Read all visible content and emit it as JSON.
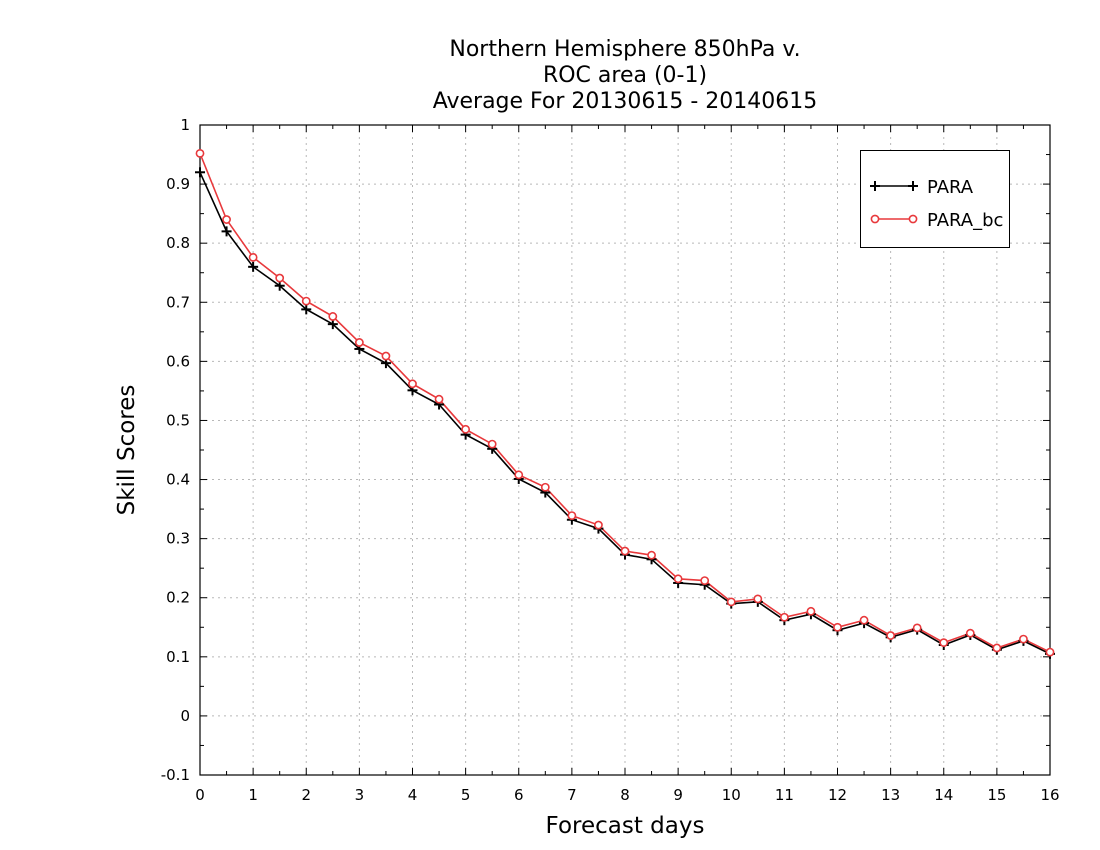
{
  "chart_data": {
    "type": "line",
    "title": [
      "Northern Hemisphere 850hPa v.",
      "ROC area (0-1)",
      "Average For 20130615 - 20140615"
    ],
    "xlabel": "Forecast days",
    "ylabel": "Skill Scores",
    "xlim": [
      0,
      16
    ],
    "ylim": [
      -0.1,
      1
    ],
    "x_ticks": [
      "0",
      "1",
      "2",
      "3",
      "4",
      "5",
      "6",
      "7",
      "8",
      "9",
      "10",
      "11",
      "12",
      "13",
      "14",
      "15",
      "16"
    ],
    "y_ticks": [
      "-0.1",
      "0",
      "0.1",
      "0.2",
      "0.3",
      "0.4",
      "0.5",
      "0.6",
      "0.7",
      "0.8",
      "0.9",
      "1"
    ],
    "grid": true,
    "legend_position": "top-right",
    "x": [
      0,
      0.5,
      1,
      1.5,
      2,
      2.5,
      3,
      3.5,
      4,
      4.5,
      5,
      5.5,
      6,
      6.5,
      7,
      7.5,
      8,
      8.5,
      9,
      9.5,
      10,
      10.5,
      11,
      11.5,
      12,
      12.5,
      13,
      13.5,
      14,
      14.5,
      15,
      15.5,
      16
    ],
    "series": [
      {
        "name": "PARA",
        "color": "#000000",
        "marker": "plus",
        "values": [
          0.92,
          0.82,
          0.76,
          0.728,
          0.688,
          0.663,
          0.621,
          0.597,
          0.551,
          0.527,
          0.476,
          0.452,
          0.401,
          0.378,
          0.332,
          0.317,
          0.273,
          0.265,
          0.225,
          0.222,
          0.19,
          0.193,
          0.162,
          0.172,
          0.145,
          0.157,
          0.133,
          0.146,
          0.12,
          0.137,
          0.112,
          0.127,
          0.105
        ]
      },
      {
        "name": "PARA_bc",
        "color": "#e8393c",
        "marker": "circle",
        "values": [
          0.952,
          0.84,
          0.776,
          0.741,
          0.702,
          0.676,
          0.632,
          0.609,
          0.562,
          0.536,
          0.485,
          0.46,
          0.408,
          0.387,
          0.339,
          0.323,
          0.279,
          0.272,
          0.232,
          0.229,
          0.193,
          0.198,
          0.167,
          0.177,
          0.15,
          0.162,
          0.136,
          0.149,
          0.124,
          0.14,
          0.115,
          0.13,
          0.108
        ]
      }
    ]
  }
}
